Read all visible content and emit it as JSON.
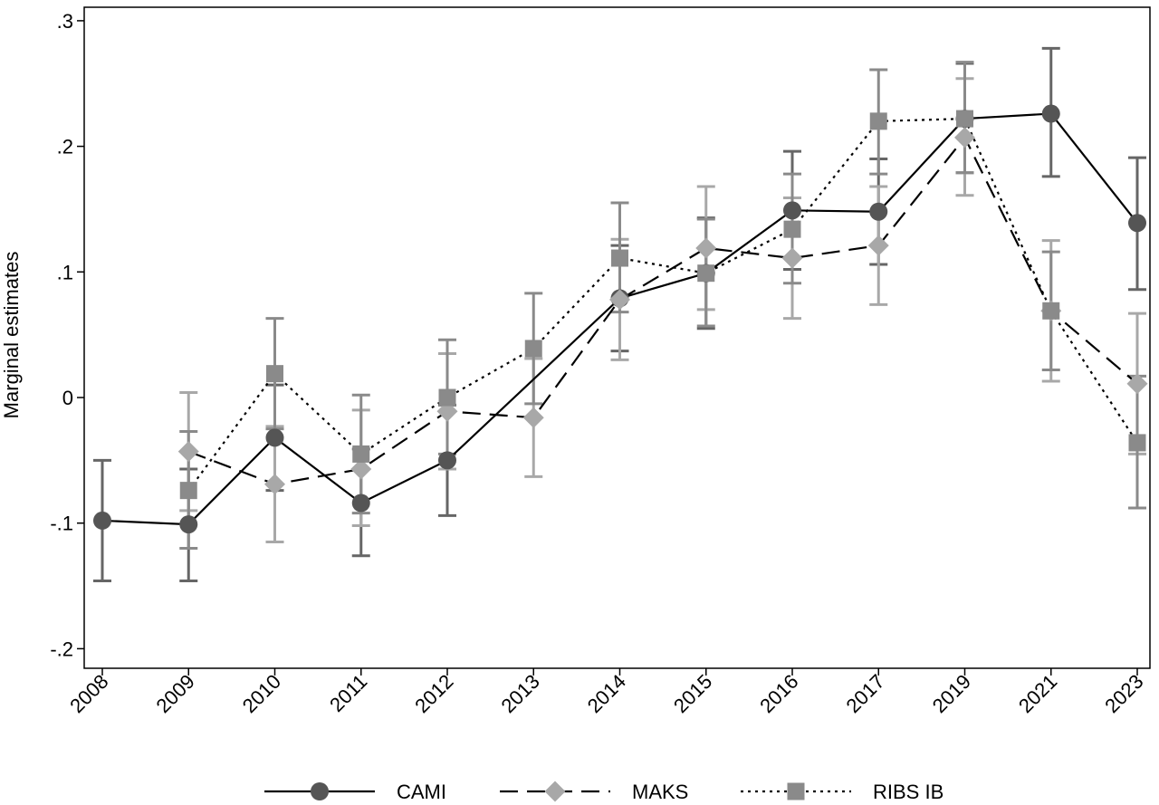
{
  "chart_data": {
    "type": "line",
    "title": "",
    "xlabel": "",
    "ylabel": "Marginal estimates",
    "categories": [
      "2008",
      "2009",
      "2010",
      "2011",
      "2012",
      "2013",
      "2014",
      "2015",
      "2016",
      "2017",
      "2019",
      "2021",
      "2023"
    ],
    "ylim": [
      -0.2,
      0.3
    ],
    "yticks": [
      {
        "value": 0.3,
        "label": ".3"
      },
      {
        "value": 0.2,
        "label": ".2"
      },
      {
        "value": 0.1,
        "label": ".1"
      },
      {
        "value": 0.0,
        "label": "0"
      },
      {
        "value": -0.1,
        "label": "-.1"
      },
      {
        "value": -0.2,
        "label": "-.2"
      }
    ],
    "grid": false,
    "legend_position": "bottom",
    "series": [
      {
        "name": "CAMI",
        "line_style": "solid",
        "marker": "circle",
        "line_color": "#000000",
        "marker_color": "#555555",
        "ci_color": "#666666",
        "values": [
          -0.098,
          -0.101,
          -0.032,
          -0.084,
          -0.05,
          null,
          0.079,
          0.099,
          0.149,
          0.148,
          0.222,
          0.226,
          0.139
        ],
        "ci_low": [
          -0.146,
          -0.146,
          -0.074,
          -0.126,
          -0.094,
          null,
          0.037,
          0.055,
          0.102,
          0.106,
          0.179,
          0.176,
          0.086
        ],
        "ci_high": [
          -0.05,
          -0.057,
          0.01,
          -0.041,
          -0.006,
          null,
          0.121,
          0.143,
          0.196,
          0.19,
          0.266,
          0.278,
          0.191
        ]
      },
      {
        "name": "MAKS",
        "line_style": "dashed",
        "marker": "diamond",
        "line_color": "#000000",
        "marker_color": "#a8a8a8",
        "ci_color": "#a8a8a8",
        "values": [
          null,
          -0.043,
          -0.069,
          -0.057,
          -0.011,
          -0.016,
          0.078,
          0.119,
          0.111,
          0.121,
          0.207,
          0.069,
          0.011
        ],
        "ci_low": [
          null,
          -0.09,
          -0.115,
          -0.102,
          -0.057,
          -0.063,
          0.03,
          0.07,
          0.063,
          0.074,
          0.161,
          0.013,
          -0.045
        ],
        "ci_high": [
          null,
          0.004,
          -0.023,
          -0.01,
          0.035,
          0.031,
          0.126,
          0.168,
          0.159,
          0.168,
          0.254,
          0.125,
          0.067
        ]
      },
      {
        "name": "RIBS IB",
        "line_style": "dotted",
        "marker": "square",
        "line_color": "#000000",
        "marker_color": "#8a8a8a",
        "ci_color": "#8a8a8a",
        "values": [
          null,
          -0.074,
          0.019,
          -0.045,
          0.0,
          0.039,
          0.111,
          0.099,
          0.134,
          0.22,
          0.222,
          0.069,
          -0.036
        ],
        "ci_low": [
          null,
          -0.12,
          -0.025,
          -0.092,
          -0.045,
          -0.005,
          0.068,
          0.057,
          0.091,
          0.178,
          0.179,
          0.022,
          -0.088
        ],
        "ci_high": [
          null,
          -0.027,
          0.063,
          0.002,
          0.046,
          0.083,
          0.155,
          0.142,
          0.178,
          0.261,
          0.267,
          0.116,
          0.017
        ]
      }
    ]
  }
}
